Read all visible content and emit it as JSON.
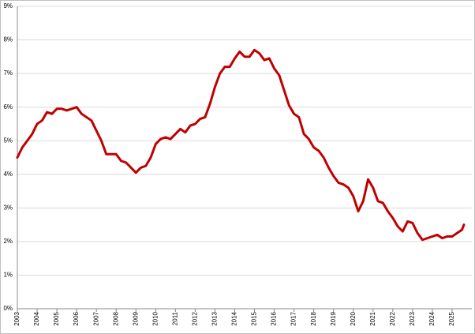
{
  "chart_data": {
    "type": "line",
    "x": [
      2003,
      2003.25,
      2003.5,
      2003.75,
      2004,
      2004.25,
      2004.5,
      2004.75,
      2005,
      2005.25,
      2005.5,
      2005.75,
      2006,
      2006.25,
      2006.5,
      2006.75,
      2007,
      2007.25,
      2007.5,
      2007.75,
      2008,
      2008.25,
      2008.5,
      2008.75,
      2009,
      2009.25,
      2009.5,
      2009.75,
      2010,
      2010.25,
      2010.5,
      2010.75,
      2011,
      2011.25,
      2011.5,
      2011.75,
      2012,
      2012.25,
      2012.5,
      2012.75,
      2013,
      2013.25,
      2013.5,
      2013.75,
      2014,
      2014.25,
      2014.5,
      2014.75,
      2015,
      2015.25,
      2015.5,
      2015.75,
      2016,
      2016.25,
      2016.5,
      2016.75,
      2017,
      2017.25,
      2017.5,
      2017.75,
      2018,
      2018.25,
      2018.5,
      2018.75,
      2019,
      2019.25,
      2019.5,
      2019.75,
      2020,
      2020.25,
      2020.5,
      2020.75,
      2021,
      2021.25,
      2021.5,
      2021.75,
      2022,
      2022.25,
      2022.5,
      2022.75,
      2023,
      2023.25,
      2023.5,
      2023.75,
      2024,
      2024.25,
      2024.5,
      2024.75,
      2025,
      2025.25,
      2025.5,
      2025.6
    ],
    "series": [
      {
        "color": "#c00000",
        "values": [
          4.5,
          4.8,
          5.0,
          5.2,
          5.5,
          5.6,
          5.85,
          5.8,
          5.95,
          5.95,
          5.9,
          5.95,
          6.0,
          5.8,
          5.7,
          5.6,
          5.3,
          5.0,
          4.6,
          4.6,
          4.6,
          4.4,
          4.35,
          4.2,
          4.05,
          4.2,
          4.25,
          4.5,
          4.9,
          5.05,
          5.1,
          5.05,
          5.2,
          5.35,
          5.25,
          5.45,
          5.5,
          5.65,
          5.7,
          6.1,
          6.6,
          7.0,
          7.2,
          7.2,
          7.45,
          7.65,
          7.5,
          7.5,
          7.7,
          7.6,
          7.4,
          7.45,
          7.15,
          6.95,
          6.5,
          6.05,
          5.8,
          5.7,
          5.2,
          5.05,
          4.8,
          4.7,
          4.5,
          4.2,
          3.95,
          3.75,
          3.7,
          3.6,
          3.35,
          2.9,
          3.2,
          3.85,
          3.6,
          3.2,
          3.15,
          2.9,
          2.7,
          2.45,
          2.3,
          2.6,
          2.55,
          2.25,
          2.05,
          2.1,
          2.15,
          2.2,
          2.1,
          2.15,
          2.15,
          2.25,
          2.35,
          2.5
        ]
      }
    ],
    "xlim": [
      2003,
      2026
    ],
    "xticks": [
      2003,
      2004,
      2005,
      2006,
      2007,
      2008,
      2009,
      2010,
      2011,
      2012,
      2013,
      2014,
      2015,
      2016,
      2017,
      2018,
      2019,
      2020,
      2021,
      2022,
      2023,
      2024,
      2025
    ],
    "ylim": [
      0,
      9
    ],
    "yticks": [
      {
        "value": 0,
        "label": "0%"
      },
      {
        "value": 1,
        "label": "1%"
      },
      {
        "value": 2,
        "label": "2%"
      },
      {
        "value": 3,
        "label": "3%"
      },
      {
        "value": 4,
        "label": "4%"
      },
      {
        "value": 5,
        "label": "5%"
      },
      {
        "value": 6,
        "label": "6%"
      },
      {
        "value": 7,
        "label": "7%"
      },
      {
        "value": 8,
        "label": "8%"
      },
      {
        "value": 9,
        "label": "9%"
      }
    ],
    "grid": true
  }
}
